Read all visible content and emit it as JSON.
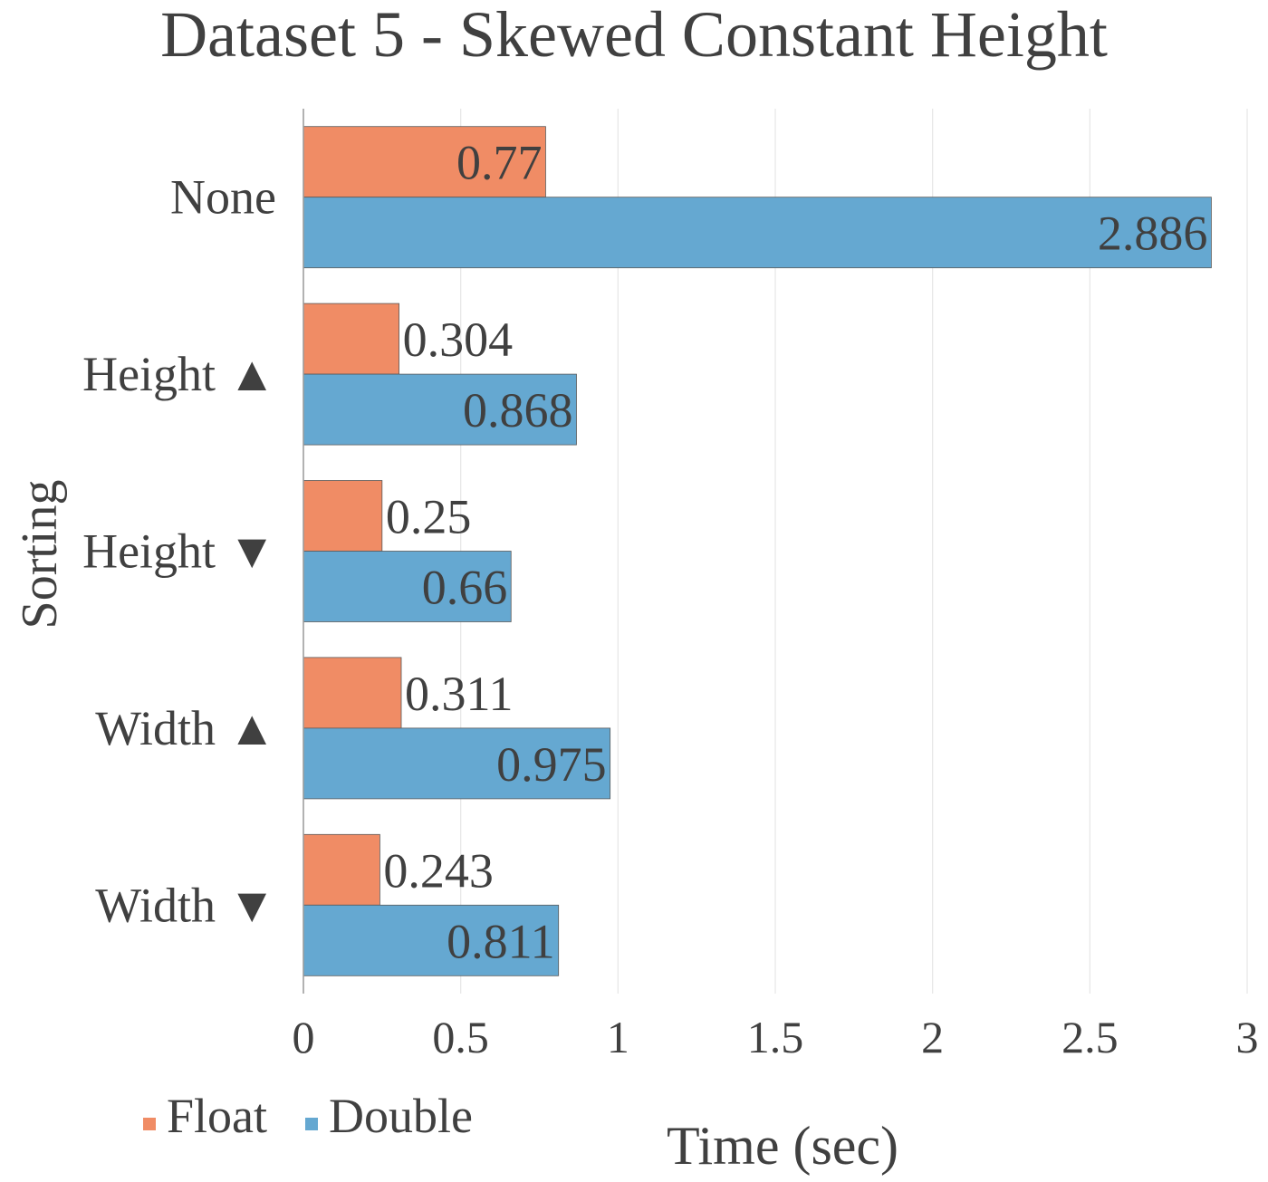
{
  "chart_data": {
    "type": "bar",
    "orientation": "horizontal",
    "title": "Dataset 5 - Skewed Constant Height",
    "xlabel": "Time (sec)",
    "ylabel": "Sorting",
    "categories": [
      "None",
      "Height ▲",
      "Height ▼",
      "Width ▲",
      "Width ▼"
    ],
    "series": [
      {
        "name": "Float",
        "color": "#F08C65",
        "values": [
          0.77,
          0.304,
          0.25,
          0.311,
          0.243
        ]
      },
      {
        "name": "Double",
        "color": "#65A8D1",
        "values": [
          2.886,
          0.868,
          0.66,
          0.975,
          0.811
        ]
      }
    ],
    "data_labels": [
      [
        "0.77",
        "0.304",
        "0.25",
        "0.311",
        "0.243"
      ],
      [
        "2.886",
        "0.868",
        "0.66",
        "0.975",
        "0.811"
      ]
    ],
    "xlim": [
      0,
      3
    ],
    "xticks": [
      0,
      0.5,
      1,
      1.5,
      2,
      2.5,
      3
    ],
    "xtick_labels": [
      "0",
      "0.5",
      "1",
      "1.5",
      "2",
      "2.5",
      "3"
    ],
    "grid": true,
    "legend_position": "bottom-left"
  }
}
